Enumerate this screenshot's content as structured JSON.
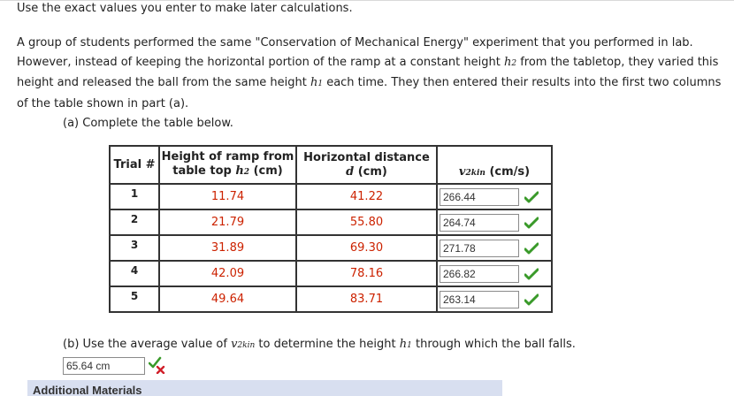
{
  "note": "Use the exact values you enter to make later calculations.",
  "paragraph": {
    "line1": "A group of students performed the same \"Conservation of Mechanical Energy\" experiment that you performed in lab.",
    "line2_a": "However, instead of keeping the horizontal portion of the ramp at a constant height ",
    "line2_var": "h",
    "line2_sub": "2",
    "line2_b": " from the tabletop, they varied this",
    "line3_a": "height and released the ball from the same height ",
    "line3_var": "h",
    "line3_sub": "1",
    "line3_b": " each time. They then entered their results into the first two columns",
    "line4": "of the table shown in part (a)."
  },
  "part_a": {
    "label": "(a) Complete the table below."
  },
  "table": {
    "h_trial": "Trial #",
    "h_height_1": "Height of ramp from",
    "h_height_2a": "table top ",
    "h_height_var": "h",
    "h_height_sub": "2",
    "h_height_2b": " (cm)",
    "h_dist_1": "Horizontal distance",
    "h_dist_var": "d",
    "h_dist_2b": " (cm)",
    "h_v_var": "v",
    "h_v_sub": "2kin",
    "h_v_unit": " (cm/s)",
    "rows": [
      {
        "trial": "1",
        "height": "11.74",
        "distance": "41.22",
        "v": "266.44"
      },
      {
        "trial": "2",
        "height": "21.79",
        "distance": "55.80",
        "v": "264.74"
      },
      {
        "trial": "3",
        "height": "31.89",
        "distance": "69.30",
        "v": "271.78"
      },
      {
        "trial": "4",
        "height": "42.09",
        "distance": "78.16",
        "v": "266.82"
      },
      {
        "trial": "5",
        "height": "49.64",
        "distance": "83.71",
        "v": "263.14"
      }
    ]
  },
  "part_b": {
    "label_a": "(b) Use the average value of ",
    "label_var": "v",
    "label_sub": "2kin",
    "label_b": " to determine the height ",
    "label_var2": "h",
    "label_sub2": "1",
    "label_c": " through which the ball falls.",
    "answer": "65.64 cm"
  },
  "additional_materials": "Additional Materials",
  "colors": {
    "given_value": "#cc2200",
    "correct": "#3a9a2a",
    "incorrect": "#d0202a",
    "banner": "#d8dff0"
  }
}
